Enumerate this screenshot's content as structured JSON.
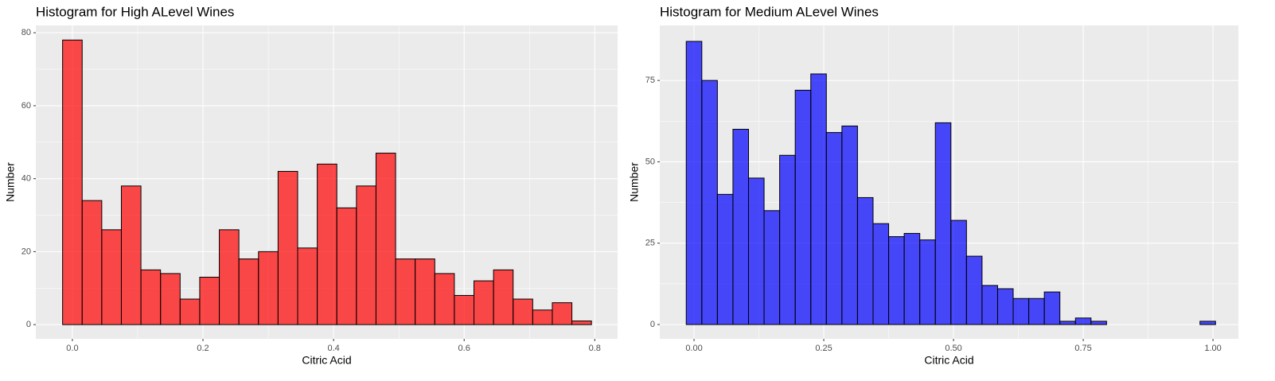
{
  "chart_data": [
    {
      "type": "histogram",
      "title": "Histogram for High ALevel Wines",
      "x_label": "Citric Acid",
      "y_label": "Number",
      "bins": [
        -0.015,
        0.015,
        0.045,
        0.075,
        0.105,
        0.135,
        0.165,
        0.195,
        0.225,
        0.255,
        0.285,
        0.315,
        0.345,
        0.375,
        0.405,
        0.435,
        0.465,
        0.495,
        0.525,
        0.555,
        0.585,
        0.615,
        0.645,
        0.675,
        0.705,
        0.735,
        0.765,
        0.795
      ],
      "values": [
        78,
        34,
        26,
        38,
        15,
        14,
        7,
        13,
        26,
        18,
        20,
        42,
        21,
        44,
        32,
        38,
        47,
        18,
        18,
        14,
        8,
        12,
        15,
        7,
        4,
        6,
        1
      ],
      "color": "#ff0000",
      "alpha": 0.7,
      "xlim": [
        -0.056,
        0.835
      ],
      "xticks": [
        {
          "value": 0,
          "label": "0.0"
        },
        0.2,
        0.4,
        0.6,
        0.8
      ],
      "ylim": [
        -3.9,
        82
      ],
      "yticks": [
        0,
        20,
        40,
        60,
        80
      ],
      "grid": true
    },
    {
      "type": "histogram",
      "title": "Histogram for Medium ALevel Wines",
      "x_label": "Citric Acid",
      "y_label": "Number",
      "bins": [
        -0.015,
        0.015,
        0.045,
        0.075,
        0.105,
        0.135,
        0.165,
        0.195,
        0.225,
        0.255,
        0.285,
        0.315,
        0.345,
        0.375,
        0.405,
        0.435,
        0.465,
        0.495,
        0.525,
        0.555,
        0.585,
        0.615,
        0.645,
        0.675,
        0.705,
        0.735,
        0.765,
        0.795,
        0.825,
        0.855,
        0.885,
        0.915,
        0.945,
        0.975,
        1.005
      ],
      "values": [
        87,
        75,
        40,
        60,
        45,
        35,
        52,
        72,
        77,
        59,
        61,
        39,
        31,
        27,
        28,
        26,
        62,
        32,
        21,
        12,
        11,
        8,
        8,
        10,
        1,
        2,
        1,
        0,
        0,
        0,
        0,
        0,
        0,
        1
      ],
      "color": "#0000ff",
      "alpha": 0.7,
      "xlim": [
        -0.066,
        1.049
      ],
      "xticks": [
        {
          "value": 0,
          "label": "0.00"
        },
        {
          "value": 0.25,
          "label": "0.25"
        },
        {
          "value": 0.5,
          "label": "0.50"
        },
        {
          "value": 0.75,
          "label": "0.75"
        },
        {
          "value": 1,
          "label": "1.00"
        }
      ],
      "ylim": [
        -4.4,
        91.9
      ],
      "yticks": [
        0,
        25,
        50,
        75
      ],
      "grid": true
    }
  ]
}
